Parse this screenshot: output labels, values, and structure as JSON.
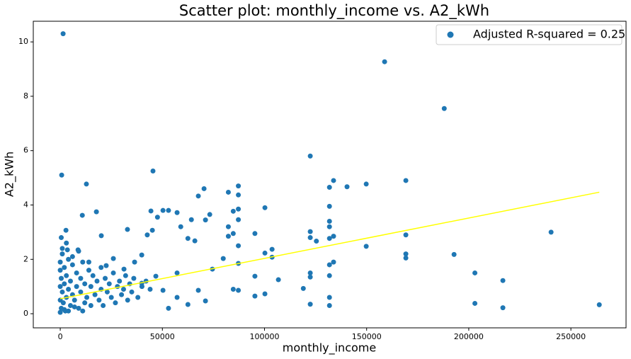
{
  "chart_data": {
    "type": "scatter",
    "title": "Scatter plot: monthly_income vs. A2_kWh",
    "x_label": "monthly_income",
    "y_label": "A2_kWh",
    "xlim": [
      -13200,
      277000
    ],
    "ylim": [
      -0.52,
      10.76
    ],
    "xticks": [
      0,
      50000,
      100000,
      150000,
      200000,
      250000
    ],
    "yticks": [
      0,
      2,
      4,
      6,
      8,
      10
    ],
    "legend_position": "upper right",
    "series": [
      {
        "name": "Adjusted R-squared = 0.25",
        "color": "#1f77b4",
        "x": [
          1400,
          158800,
          188000,
          122400,
          700,
          45400,
          12800,
          240300,
          263900,
          216700,
          216700,
          203000,
          203000,
          192800,
          169200,
          169200,
          169200,
          169200,
          149800,
          149800,
          140400,
          133800,
          131800,
          131800,
          131800,
          131800,
          131800,
          131800,
          131800,
          131800,
          131800,
          133800,
          133800,
          122400,
          122400,
          122400,
          122400,
          122400,
          125400,
          119000,
          100200,
          103700,
          103700,
          100200,
          95300,
          95300,
          95300,
          100200,
          106800,
          87200,
          87200,
          87200,
          87200,
          87200,
          87200,
          87200,
          84700,
          84700,
          84700,
          82300,
          82300,
          82300,
          79800,
          70400,
          67600,
          73200,
          71100,
          65900,
          64200,
          62500,
          59000,
          57200,
          53000,
          50300,
          47600,
          44400,
          45100,
          42600,
          32900,
          8700,
          2800,
          10800,
          17700,
          20100,
          3500,
          57200,
          67600,
          74500,
          62500,
          53000,
          71100,
          57200,
          46800,
          39900,
          50300,
          36400,
          31200,
          26000,
          22500,
          39900,
          0,
          0,
          0,
          0,
          0,
          500,
          500,
          1000,
          1000,
          1500,
          2000,
          2000,
          2500,
          3000,
          3000,
          4000,
          4000,
          5000,
          5000,
          6000,
          6000,
          7000,
          8000,
          8000,
          9000,
          10000,
          10000,
          11000,
          12000,
          12000,
          13000,
          14000,
          15000,
          15000,
          16000,
          17000,
          18000,
          19000,
          20000,
          20000,
          21000,
          22000,
          23000,
          24000,
          25000,
          26000,
          27000,
          28000,
          29000,
          30000,
          31000,
          32000,
          33000,
          34000,
          35000,
          36000,
          38000,
          40000,
          42000,
          44000,
          1000,
          3000,
          6000,
          9000,
          14000,
          2000,
          500,
          4000,
          7000,
          11000
        ],
        "y": [
          10.3,
          9.27,
          7.55,
          5.8,
          5.1,
          5.25,
          4.77,
          3.0,
          0.33,
          1.22,
          0.22,
          1.5,
          0.38,
          2.18,
          4.9,
          2.9,
          2.2,
          2.05,
          4.77,
          2.48,
          4.67,
          4.9,
          4.65,
          3.95,
          3.4,
          3.2,
          2.77,
          1.8,
          1.4,
          0.6,
          0.3,
          2.85,
          1.9,
          3.02,
          2.8,
          1.5,
          1.35,
          0.35,
          2.67,
          0.93,
          3.9,
          2.37,
          2.08,
          2.23,
          2.95,
          1.38,
          0.65,
          0.73,
          1.25,
          4.7,
          4.37,
          3.85,
          3.46,
          2.5,
          1.85,
          0.86,
          3.77,
          2.95,
          0.9,
          4.47,
          3.2,
          2.85,
          2.03,
          4.6,
          4.33,
          3.65,
          3.45,
          2.68,
          3.46,
          2.77,
          3.2,
          3.72,
          3.8,
          3.8,
          3.55,
          3.78,
          3.07,
          2.9,
          3.1,
          2.35,
          3.07,
          3.62,
          3.75,
          2.87,
          2.35,
          0.6,
          0.86,
          1.64,
          0.34,
          0.2,
          0.47,
          1.5,
          1.38,
          1.12,
          0.86,
          1.9,
          1.64,
          2.03,
          1.77,
          2.16,
          0.05,
          0.5,
          1.0,
          1.6,
          1.9,
          0.2,
          1.3,
          0.8,
          2.2,
          0.4,
          1.1,
          1.7,
          0.1,
          0.6,
          1.4,
          0.9,
          2.0,
          0.3,
          1.2,
          0.7,
          1.8,
          0.5,
          1.0,
          1.5,
          0.2,
          0.8,
          1.3,
          1.9,
          0.4,
          1.1,
          0.6,
          1.6,
          0.3,
          1.0,
          1.4,
          0.7,
          1.2,
          0.5,
          1.7,
          0.9,
          0.3,
          1.3,
          0.8,
          1.1,
          0.6,
          1.5,
          0.4,
          1.0,
          1.2,
          0.7,
          0.9,
          1.4,
          0.5,
          1.1,
          0.8,
          1.3,
          0.6,
          1.0,
          1.2,
          0.9,
          2.4,
          2.6,
          2.1,
          2.3,
          1.9,
          0.15,
          2.8,
          0.1,
          0.25,
          0.1
        ]
      }
    ],
    "fit": {
      "color": "#ffff00",
      "x": [
        0,
        263900
      ],
      "y": [
        0.55,
        4.47
      ]
    }
  }
}
